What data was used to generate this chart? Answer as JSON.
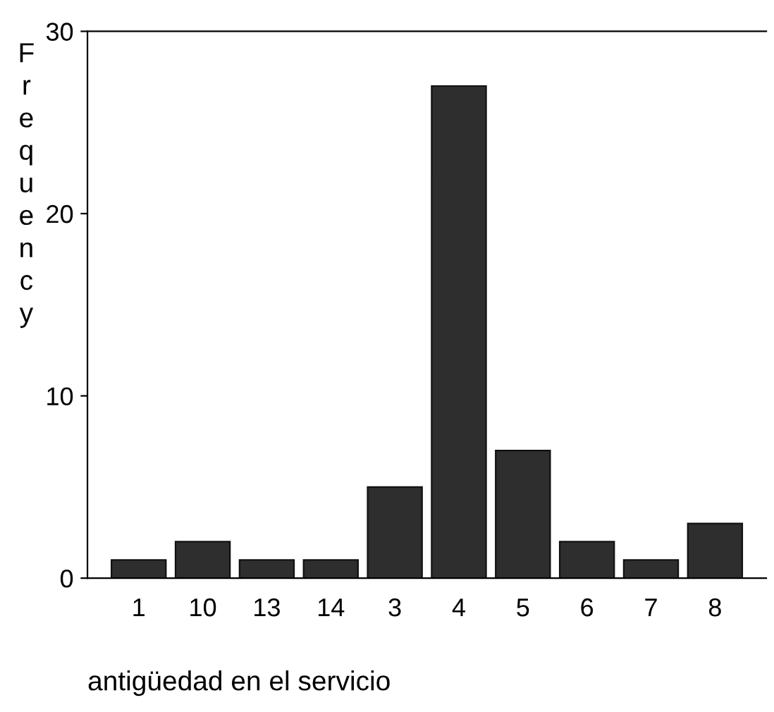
{
  "chart_data": {
    "type": "bar",
    "xlabel": "antigüedad en el servicio",
    "ylabel": "Frequency",
    "categories": [
      "1",
      "10",
      "13",
      "14",
      "3",
      "4",
      "5",
      "6",
      "7",
      "8"
    ],
    "values": [
      1,
      2,
      1,
      1,
      5,
      27,
      7,
      2,
      1,
      3
    ],
    "color": "#2e2e2e",
    "ylim": [
      0,
      30
    ],
    "yticks": [
      0,
      10,
      20,
      30
    ],
    "grid": false,
    "legend": false
  }
}
